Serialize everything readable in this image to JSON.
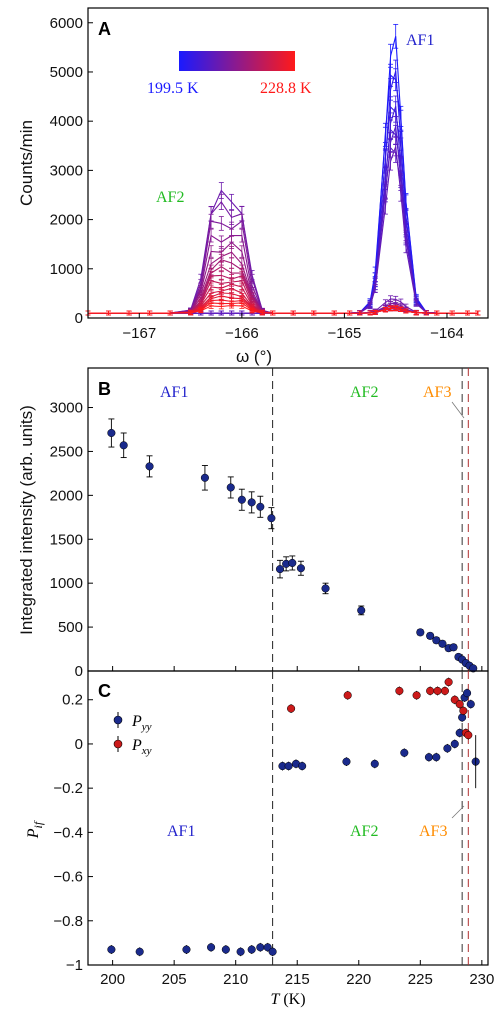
{
  "chart_data": [
    {
      "panel": "A",
      "type": "line",
      "xlabel": "ω (°)",
      "ylabel": "Counts/min",
      "xlim": [
        -167.5,
        -163.6
      ],
      "ylim": [
        0,
        6300
      ],
      "xticks": [
        -167,
        -166,
        -165,
        -164
      ],
      "yticks": [
        0,
        1000,
        2000,
        3000,
        4000,
        5000,
        6000
      ],
      "colorbar": {
        "low_label": "199.5 K",
        "high_label": "228.8 K",
        "low_color": "#1a1aff",
        "high_color": "#ff1a1a"
      },
      "annotations": [
        {
          "text": "AF1",
          "color": "#2222cc"
        },
        {
          "text": "AF2",
          "color": "#22bb22"
        }
      ],
      "x": [
        -167.5,
        -167.3,
        -167.1,
        -166.9,
        -166.7,
        -166.5,
        -166.4,
        -166.3,
        -166.2,
        -166.1,
        -166.0,
        -165.9,
        -165.8,
        -165.7,
        -165.5,
        -165.3,
        -165.1,
        -164.95,
        -164.85,
        -164.75,
        -164.7,
        -164.6,
        -164.55,
        -164.5,
        -164.45,
        -164.4,
        -164.3,
        -164.2,
        -164.1,
        -163.95,
        -163.8,
        -163.7
      ],
      "series_note": "",
      "series": [
        {
          "name": "",
          "af1_peak": 5500,
          "af2_peak": 0
        },
        {
          "name": "",
          "af1_peak": 5100,
          "af2_peak": 0
        },
        {
          "name": "",
          "af1_peak": 4800,
          "af2_peak": 0
        },
        {
          "name": "",
          "af1_peak": 4400,
          "af2_peak": 0
        },
        {
          "name": "",
          "af1_peak": 4100,
          "af2_peak": 0
        },
        {
          "name": "",
          "af1_peak": 3900,
          "af2_peak": 0
        },
        {
          "name": "",
          "af1_peak": 3700,
          "af2_peak": 0
        },
        {
          "name": "",
          "af1_peak": 3500,
          "af2_peak": 0
        },
        {
          "name": "",
          "af1_peak": 3300,
          "af2_peak": 0
        },
        {
          "name": "",
          "af1_peak": 300,
          "af2_peak": 2500
        },
        {
          "name": "",
          "af1_peak": 200,
          "af2_peak": 2300
        },
        {
          "name": "",
          "af1_peak": 150,
          "af2_peak": 2000
        },
        {
          "name": "",
          "af1_peak": 120,
          "af2_peak": 1700
        },
        {
          "name": "",
          "af1_peak": 100,
          "af2_peak": 1450
        },
        {
          "name": "",
          "af1_peak": 100,
          "af2_peak": 1250
        },
        {
          "name": "",
          "af1_peak": 100,
          "af2_peak": 1100
        },
        {
          "name": "",
          "af1_peak": 100,
          "af2_peak": 950
        },
        {
          "name": "",
          "af1_peak": 100,
          "af2_peak": 820
        },
        {
          "name": "",
          "af1_peak": 100,
          "af2_peak": 700
        },
        {
          "name": "",
          "af1_peak": 100,
          "af2_peak": 600
        },
        {
          "name": "",
          "af1_peak": 100,
          "af2_peak": 500
        },
        {
          "name": "",
          "af1_peak": 100,
          "af2_peak": 420
        },
        {
          "name": "",
          "af1_peak": 100,
          "af2_peak": 350
        },
        {
          "name": "",
          "af1_peak": 100,
          "af2_peak": 280
        },
        {
          "name": "",
          "af1_peak": 100,
          "af2_peak": 220
        },
        {
          "name": "",
          "af1_peak": 100,
          "af2_peak": 160
        }
      ]
    },
    {
      "panel": "B",
      "type": "scatter",
      "xlabel": "",
      "ylabel": "Integrated intensity (arb. units)",
      "xlim": [
        198,
        230.5
      ],
      "ylim": [
        0,
        3450
      ],
      "yticks": [
        0,
        500,
        1000,
        1500,
        2000,
        2500,
        3000
      ],
      "point_color": "#1a2a8c",
      "annotations": [
        {
          "text": "AF1",
          "color": "#2222cc"
        },
        {
          "text": "AF2",
          "color": "#22bb22"
        },
        {
          "text": "AF3",
          "color": "#ff8c00"
        }
      ],
      "vlines": [
        213.0,
        228.4,
        228.9
      ],
      "points": [
        [
          199.9,
          2710,
          160
        ],
        [
          200.9,
          2570,
          140
        ],
        [
          203.0,
          2330,
          120
        ],
        [
          207.5,
          2200,
          140
        ],
        [
          209.6,
          2090,
          120
        ],
        [
          210.5,
          1950,
          120
        ],
        [
          211.3,
          1920,
          120
        ],
        [
          212.0,
          1870,
          120
        ],
        [
          212.9,
          1740,
          120
        ],
        [
          213.6,
          1160,
          100
        ],
        [
          214.1,
          1220,
          80
        ],
        [
          214.6,
          1230,
          80
        ],
        [
          215.3,
          1170,
          80
        ],
        [
          217.3,
          940,
          60
        ],
        [
          220.2,
          690,
          50
        ],
        [
          225.0,
          440,
          30
        ],
        [
          225.8,
          400,
          30
        ],
        [
          226.3,
          350,
          30
        ],
        [
          226.8,
          310,
          30
        ],
        [
          227.3,
          260,
          30
        ],
        [
          227.7,
          270,
          30
        ],
        [
          228.1,
          160,
          30
        ],
        [
          228.4,
          130,
          25
        ],
        [
          228.7,
          90,
          25
        ],
        [
          229.0,
          60,
          20
        ],
        [
          229.3,
          30,
          20
        ]
      ]
    },
    {
      "panel": "C",
      "type": "scatter",
      "xlabel": "T (K)",
      "ylabel": "P_if",
      "xlim": [
        198,
        230.5
      ],
      "ylim": [
        -1.0,
        0.33
      ],
      "xticks": [
        200,
        205,
        210,
        215,
        220,
        225,
        230
      ],
      "yticks": [
        -1,
        -0.8,
        -0.6,
        -0.4,
        -0.2,
        0,
        0.2
      ],
      "legend": {
        "position": "top-left",
        "entries": [
          "Pyy",
          "Pxy"
        ]
      },
      "annotations": [
        {
          "text": "AF1",
          "color": "#2222cc"
        },
        {
          "text": "AF2",
          "color": "#22bb22"
        },
        {
          "text": "AF3",
          "color": "#ff8c00"
        }
      ],
      "vlines": [
        213.0,
        228.4,
        228.9
      ],
      "series": [
        {
          "name": "Pyy",
          "color": "#1a2a8c",
          "points": [
            [
              199.9,
              -0.93
            ],
            [
              202.2,
              -0.94
            ],
            [
              206.0,
              -0.93
            ],
            [
              208.0,
              -0.92
            ],
            [
              209.2,
              -0.93
            ],
            [
              210.4,
              -0.94
            ],
            [
              211.3,
              -0.93
            ],
            [
              212.0,
              -0.92
            ],
            [
              212.6,
              -0.92
            ],
            [
              213.0,
              -0.94
            ],
            [
              213.8,
              -0.1
            ],
            [
              214.3,
              -0.1
            ],
            [
              214.9,
              -0.09
            ],
            [
              215.4,
              -0.1
            ],
            [
              219.0,
              -0.08
            ],
            [
              221.3,
              -0.09
            ],
            [
              223.7,
              -0.04
            ],
            [
              225.7,
              -0.06
            ],
            [
              226.3,
              -0.06
            ],
            [
              227.2,
              -0.02
            ],
            [
              227.8,
              0.0
            ],
            [
              228.2,
              0.05
            ],
            [
              228.4,
              0.12
            ],
            [
              228.6,
              0.21
            ],
            [
              228.8,
              0.23
            ],
            [
              229.1,
              0.18
            ],
            [
              229.5,
              -0.08
            ]
          ]
        },
        {
          "name": "Pxy",
          "color": "#cc1a1a",
          "points": [
            [
              214.5,
              0.16
            ],
            [
              219.1,
              0.22
            ],
            [
              223.3,
              0.24
            ],
            [
              224.7,
              0.22
            ],
            [
              225.8,
              0.24
            ],
            [
              226.4,
              0.24
            ],
            [
              227.0,
              0.24
            ],
            [
              227.3,
              0.28
            ],
            [
              227.8,
              0.2
            ],
            [
              228.2,
              0.18
            ],
            [
              228.5,
              0.15
            ],
            [
              228.7,
              0.05
            ],
            [
              228.9,
              0.04
            ]
          ]
        }
      ]
    }
  ]
}
